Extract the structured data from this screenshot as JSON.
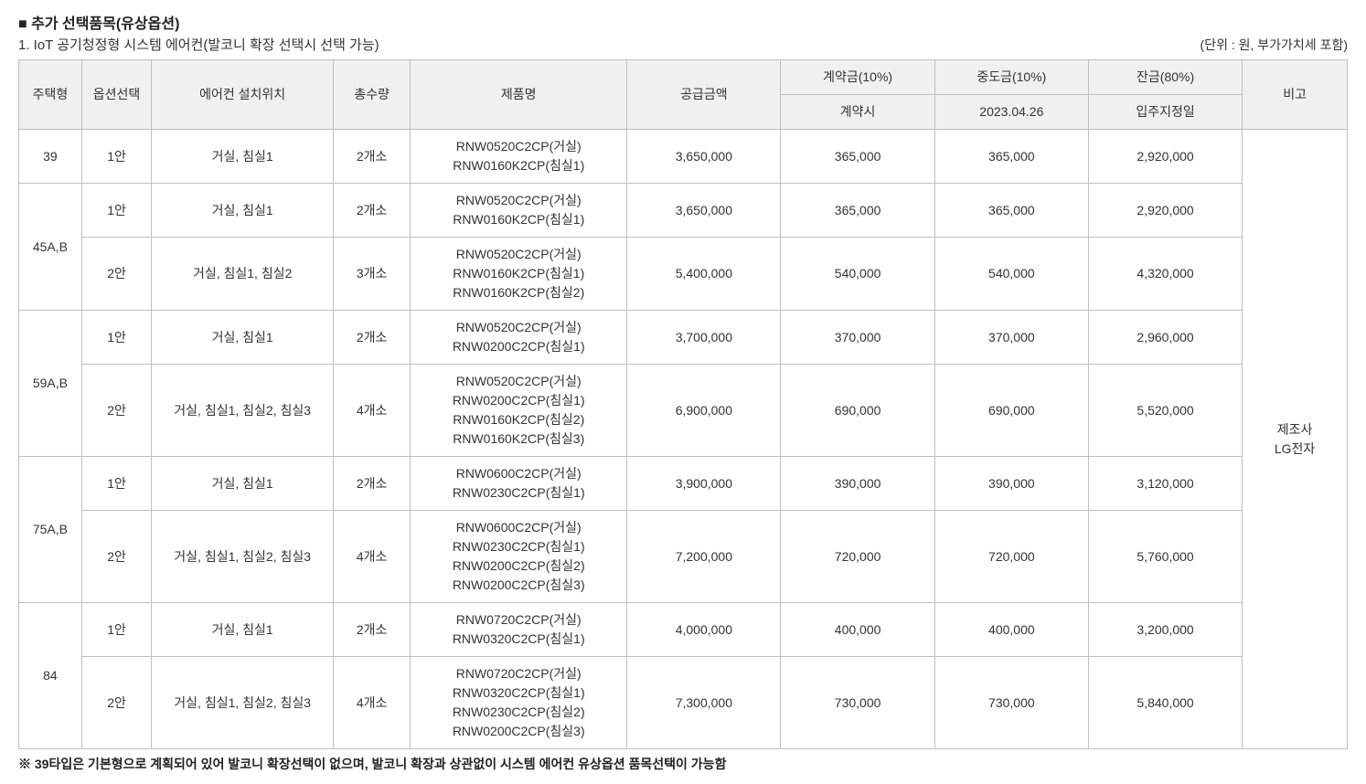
{
  "title": "■ 추가 선택품목(유상옵션)",
  "subtitle": "1. IoT 공기청정형 시스템 에어컨(발코니 확장 선택시 선택 가능)",
  "unit": "(단위 : 원, 부가가치세 포함)",
  "headers": {
    "type": "주택형",
    "option": "옵션선택",
    "location": "에어컨 설치위치",
    "qty": "총수량",
    "product": "제품명",
    "supply": "공급금액",
    "contract": "계약금(10%)",
    "interim": "중도금(10%)",
    "balance": "잔금(80%)",
    "note": "비고",
    "contract_sub": "계약시",
    "interim_sub": "2023.04.26",
    "balance_sub": "입주지정일"
  },
  "note_text": "제조사\nLG전자",
  "rows": [
    {
      "type": "39",
      "type_rowspan": 1,
      "option": "1안",
      "location": "거실, 침실1",
      "qty": "2개소",
      "product": "RNW0520C2CP(거실)\nRNW0160K2CP(침실1)",
      "supply": "3,650,000",
      "contract": "365,000",
      "interim": "365,000",
      "balance": "2,920,000"
    },
    {
      "type": "45A,B",
      "type_rowspan": 2,
      "option": "1안",
      "location": "거실, 침실1",
      "qty": "2개소",
      "product": "RNW0520C2CP(거실)\nRNW0160K2CP(침실1)",
      "supply": "3,650,000",
      "contract": "365,000",
      "interim": "365,000",
      "balance": "2,920,000"
    },
    {
      "option": "2안",
      "location": "거실, 침실1, 침실2",
      "qty": "3개소",
      "product": "RNW0520C2CP(거실)\nRNW0160K2CP(침실1)\nRNW0160K2CP(침실2)",
      "supply": "5,400,000",
      "contract": "540,000",
      "interim": "540,000",
      "balance": "4,320,000"
    },
    {
      "type": "59A,B",
      "type_rowspan": 2,
      "option": "1안",
      "location": "거실, 침실1",
      "qty": "2개소",
      "product": "RNW0520C2CP(거실)\nRNW0200C2CP(침실1)",
      "supply": "3,700,000",
      "contract": "370,000",
      "interim": "370,000",
      "balance": "2,960,000"
    },
    {
      "option": "2안",
      "location": "거실, 침실1, 침실2, 침실3",
      "qty": "4개소",
      "product": "RNW0520C2CP(거실)\nRNW0200C2CP(침실1)\nRNW0160K2CP(침실2)\nRNW0160K2CP(침실3)",
      "supply": "6,900,000",
      "contract": "690,000",
      "interim": "690,000",
      "balance": "5,520,000"
    },
    {
      "type": "75A,B",
      "type_rowspan": 2,
      "option": "1안",
      "location": "거실, 침실1",
      "qty": "2개소",
      "product": "RNW0600C2CP(거실)\nRNW0230C2CP(침실1)",
      "supply": "3,900,000",
      "contract": "390,000",
      "interim": "390,000",
      "balance": "3,120,000"
    },
    {
      "option": "2안",
      "location": "거실, 침실1, 침실2, 침실3",
      "qty": "4개소",
      "product": "RNW0600C2CP(거실)\nRNW0230C2CP(침실1)\nRNW0200C2CP(침실2)\nRNW0200C2CP(침실3)",
      "supply": "7,200,000",
      "contract": "720,000",
      "interim": "720,000",
      "balance": "5,760,000"
    },
    {
      "type": "84",
      "type_rowspan": 2,
      "option": "1안",
      "location": "거실, 침실1",
      "qty": "2개소",
      "product": "RNW0720C2CP(거실)\nRNW0320C2CP(침실1)",
      "supply": "4,000,000",
      "contract": "400,000",
      "interim": "400,000",
      "balance": "3,200,000"
    },
    {
      "option": "2안",
      "location": "거실, 침실1, 침실2, 침실3",
      "qty": "4개소",
      "product": "RNW0720C2CP(거실)\nRNW0320C2CP(침실1)\nRNW0230C2CP(침실2)\nRNW0200C2CP(침실3)",
      "supply": "7,300,000",
      "contract": "730,000",
      "interim": "730,000",
      "balance": "5,840,000"
    }
  ],
  "footnote": "※ 39타입은 기본형으로 계획되어 있어 발코니 확장선택이 없으며, 발코니 확장과 상관없이 시스템 에어컨 유상옵션 품목선택이 가능함"
}
